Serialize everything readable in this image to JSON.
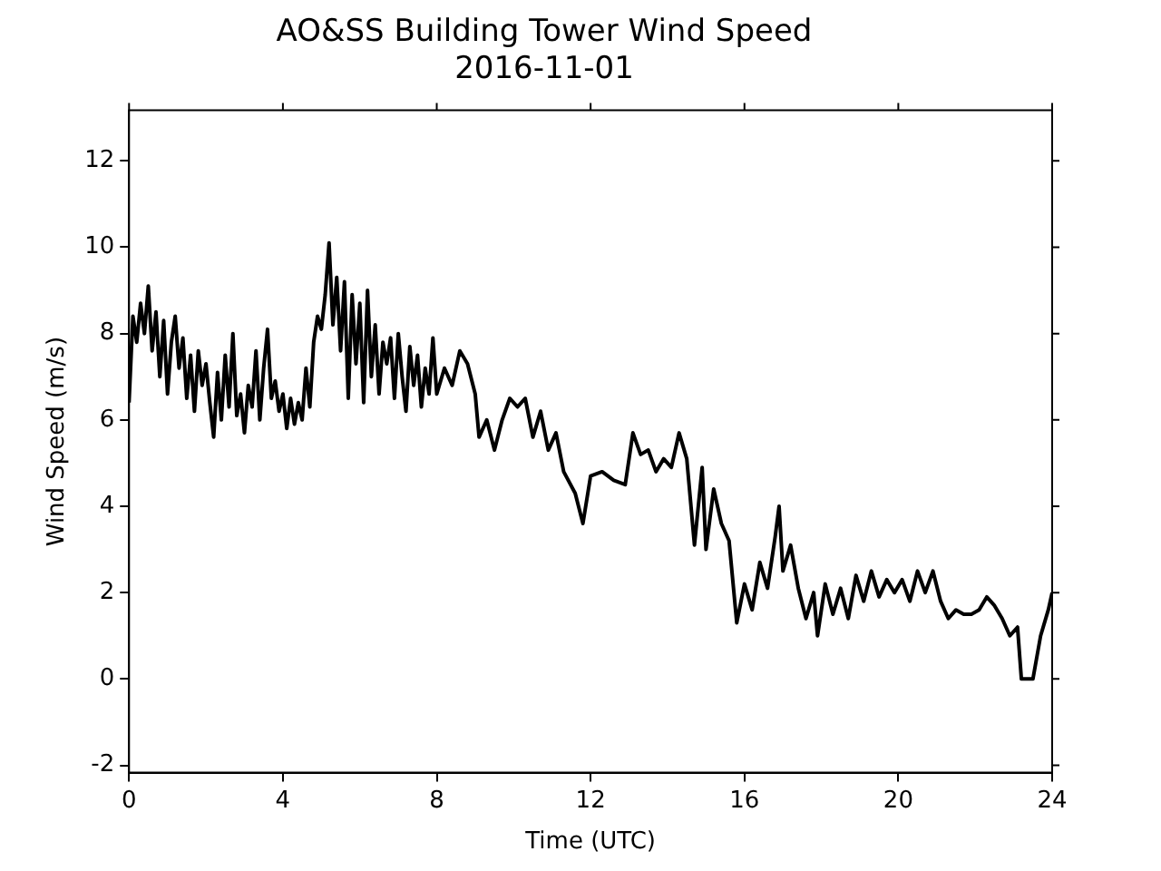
{
  "chart_data": {
    "type": "line",
    "title": "AO&SS Building Tower Wind Speed",
    "subtitle": "2016-11-01",
    "xlabel": "Time (UTC)",
    "ylabel": "Wind Speed (m/s)",
    "xlim": [
      0,
      24
    ],
    "xticks": [
      0,
      4,
      8,
      12,
      16,
      20,
      24
    ],
    "ylim": [
      -2.17,
      13.17
    ],
    "yticks": [
      -2,
      0,
      2,
      4,
      6,
      8,
      10,
      12
    ],
    "grid": false,
    "legend": false,
    "marker": "none",
    "line_style": "solid",
    "series": [
      {
        "color": "#000000",
        "x": [
          0,
          0.1,
          0.2,
          0.3,
          0.4,
          0.5,
          0.6,
          0.7,
          0.8,
          0.9,
          1.0,
          1.1,
          1.2,
          1.3,
          1.4,
          1.5,
          1.6,
          1.7,
          1.8,
          1.9,
          2.0,
          2.1,
          2.2,
          2.3,
          2.4,
          2.5,
          2.6,
          2.7,
          2.8,
          2.9,
          3.0,
          3.1,
          3.2,
          3.3,
          3.4,
          3.5,
          3.6,
          3.7,
          3.8,
          3.9,
          4.0,
          4.1,
          4.2,
          4.3,
          4.4,
          4.5,
          4.6,
          4.7,
          4.8,
          4.9,
          5.0,
          5.1,
          5.2,
          5.3,
          5.4,
          5.5,
          5.6,
          5.7,
          5.8,
          5.9,
          6.0,
          6.1,
          6.2,
          6.3,
          6.4,
          6.5,
          6.6,
          6.7,
          6.8,
          6.9,
          7.0,
          7.1,
          7.2,
          7.3,
          7.4,
          7.5,
          7.6,
          7.7,
          7.8,
          7.9,
          8.0,
          8.2,
          8.4,
          8.6,
          8.8,
          9.0,
          9.1,
          9.3,
          9.5,
          9.7,
          9.9,
          10.1,
          10.3,
          10.5,
          10.7,
          10.9,
          11.1,
          11.3,
          11.6,
          11.8,
          12.0,
          12.3,
          12.6,
          12.9,
          13.1,
          13.3,
          13.5,
          13.7,
          13.9,
          14.1,
          14.3,
          14.5,
          14.7,
          14.9,
          15.0,
          15.2,
          15.4,
          15.6,
          15.8,
          16.0,
          16.2,
          16.4,
          16.6,
          16.8,
          16.9,
          17.0,
          17.2,
          17.4,
          17.6,
          17.8,
          17.9,
          18.1,
          18.3,
          18.5,
          18.7,
          18.9,
          19.1,
          19.3,
          19.5,
          19.7,
          19.9,
          20.1,
          20.3,
          20.5,
          20.7,
          20.9,
          21.1,
          21.3,
          21.5,
          21.7,
          21.9,
          22.1,
          22.3,
          22.5,
          22.7,
          22.9,
          23.1,
          23.2,
          23.5,
          23.7,
          23.9,
          24.0
        ],
        "values": [
          6.4,
          8.4,
          7.8,
          8.7,
          8.0,
          9.1,
          7.6,
          8.5,
          7.0,
          8.3,
          6.6,
          7.8,
          8.4,
          7.2,
          7.9,
          6.5,
          7.5,
          6.2,
          7.6,
          6.8,
          7.3,
          6.4,
          5.6,
          7.1,
          6.0,
          7.5,
          6.3,
          8.0,
          6.1,
          6.6,
          5.7,
          6.8,
          6.3,
          7.6,
          6.0,
          7.2,
          8.1,
          6.5,
          6.9,
          6.2,
          6.6,
          5.8,
          6.5,
          5.9,
          6.4,
          6.0,
          7.2,
          6.3,
          7.8,
          8.4,
          8.1,
          8.9,
          10.1,
          8.2,
          9.3,
          7.6,
          9.2,
          6.5,
          8.9,
          7.3,
          8.7,
          6.4,
          9.0,
          7.0,
          8.2,
          6.6,
          7.8,
          7.3,
          7.9,
          6.5,
          8.0,
          7.0,
          6.2,
          7.7,
          6.8,
          7.5,
          6.3,
          7.2,
          6.6,
          7.9,
          6.6,
          7.2,
          6.8,
          7.6,
          7.3,
          6.6,
          5.6,
          6.0,
          5.3,
          6.0,
          6.5,
          6.3,
          6.5,
          5.6,
          6.2,
          5.3,
          5.7,
          4.8,
          4.3,
          3.6,
          4.7,
          4.8,
          4.6,
          4.5,
          5.7,
          5.2,
          5.3,
          4.8,
          5.1,
          4.9,
          5.7,
          5.1,
          3.1,
          4.9,
          3.0,
          4.4,
          3.6,
          3.2,
          1.3,
          2.2,
          1.6,
          2.7,
          2.1,
          3.3,
          4.0,
          2.5,
          3.1,
          2.1,
          1.4,
          2.0,
          1.0,
          2.2,
          1.5,
          2.1,
          1.4,
          2.4,
          1.8,
          2.5,
          1.9,
          2.3,
          2.0,
          2.3,
          1.8,
          2.5,
          2.0,
          2.5,
          1.8,
          1.4,
          1.6,
          1.5,
          1.5,
          1.6,
          1.9,
          1.7,
          1.4,
          1.0,
          1.2,
          0.0,
          0.0,
          1.0,
          1.6,
          2.0
        ]
      }
    ]
  }
}
